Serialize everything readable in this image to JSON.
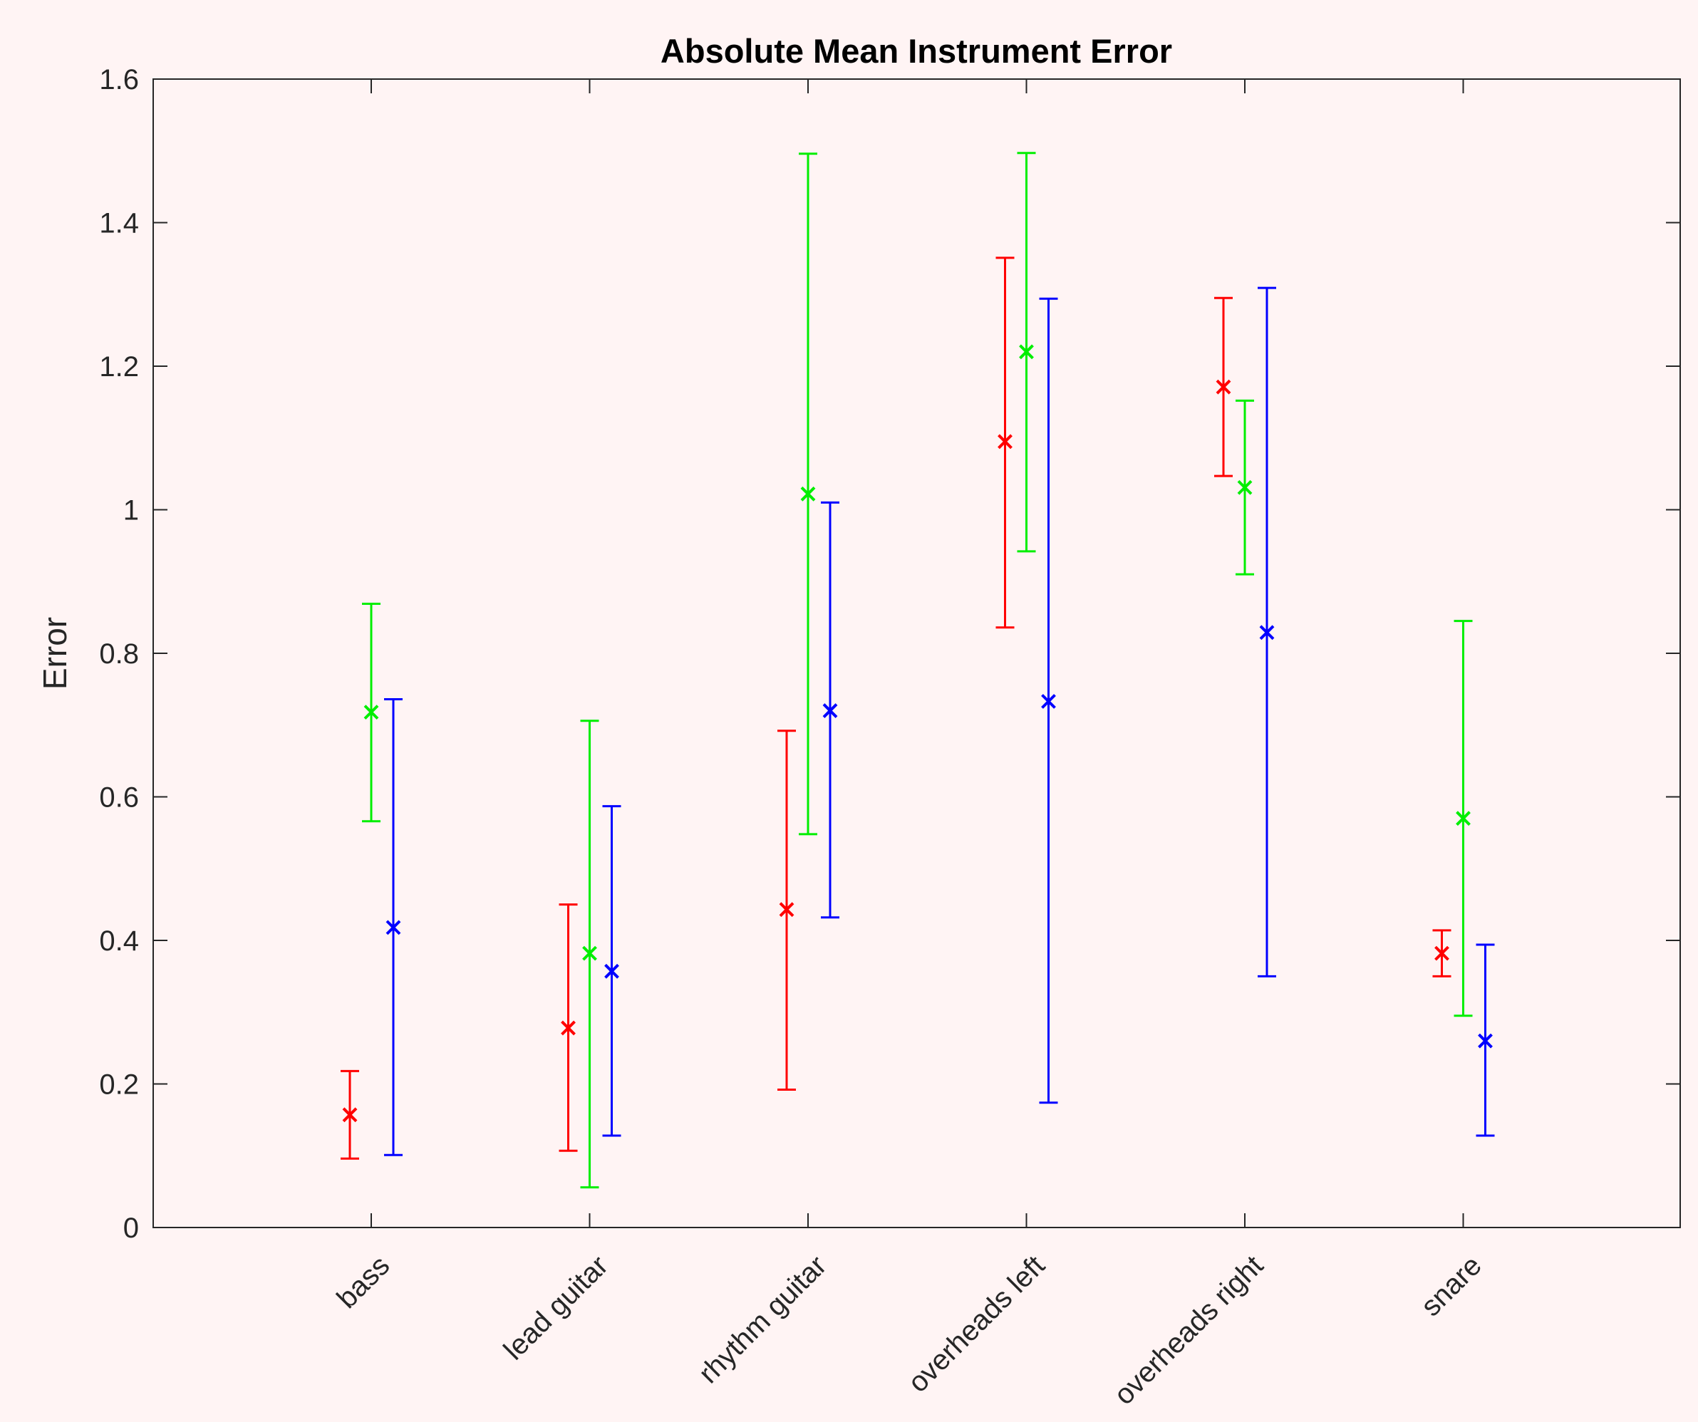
{
  "chart_data": {
    "type": "scatter",
    "title": "Absolute Mean Instrument Error",
    "xlabel": "",
    "ylabel": "Error",
    "ylim": [
      0,
      1.6
    ],
    "yticks": [
      "0",
      "0.2",
      "0.4",
      "0.6",
      "0.8",
      "1",
      "1.2",
      "1.4",
      "1.6"
    ],
    "categories": [
      "bass",
      "lead guitar",
      "rhythm guitar",
      "overheads left",
      "overheads right",
      "snare"
    ],
    "grid": false,
    "legend": "none",
    "series": [
      {
        "color": "#ff0000",
        "values": [
          0.157,
          0.278,
          0.443,
          1.095,
          1.171,
          0.382
        ],
        "lower": [
          0.096,
          0.107,
          0.192,
          0.836,
          1.047,
          0.35
        ],
        "upper": [
          0.218,
          0.45,
          0.692,
          1.351,
          1.295,
          0.414
        ]
      },
      {
        "color": "#00ee00",
        "values": [
          0.718,
          0.382,
          1.022,
          1.22,
          1.031,
          0.57
        ],
        "lower": [
          0.566,
          0.056,
          0.548,
          0.942,
          0.91,
          0.295
        ],
        "upper": [
          0.869,
          0.706,
          1.496,
          1.497,
          1.152,
          0.845
        ]
      },
      {
        "color": "#0000ff",
        "values": [
          0.418,
          0.357,
          0.72,
          0.733,
          0.829,
          0.26
        ],
        "lower": [
          0.101,
          0.128,
          0.432,
          0.174,
          0.35,
          0.128
        ],
        "upper": [
          0.736,
          0.587,
          1.01,
          1.294,
          1.309,
          0.394
        ]
      }
    ]
  }
}
